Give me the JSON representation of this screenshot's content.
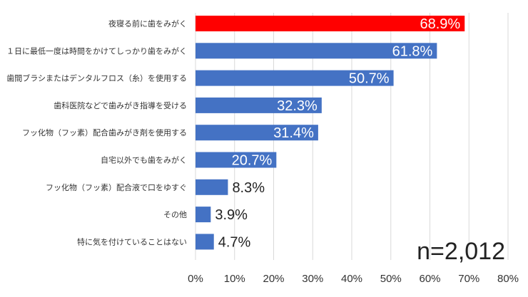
{
  "chart_data": {
    "type": "bar",
    "orientation": "horizontal",
    "categories": [
      "夜寝る前に歯をみがく",
      "１日に最低一度は時間をかけてしっかり歯をみがく",
      "歯間ブラシまたはデンタルフロス（糸）を使用する",
      "歯科医院などで歯みがき指導を受ける",
      "フッ化物（フッ素）配合歯みがき剤を使用する",
      "自宅以外でも歯をみがく",
      "フッ化物（フッ素）配合液で口をゆすぐ",
      "その他",
      "特に気を付けていることはない"
    ],
    "values": [
      68.9,
      61.8,
      50.7,
      32.3,
      31.4,
      20.7,
      8.3,
      3.9,
      4.7
    ],
    "value_labels": [
      "68.9%",
      "61.8%",
      "50.7%",
      "32.3%",
      "31.4%",
      "20.7%",
      "8.3%",
      "3.9%",
      "4.7%"
    ],
    "xlim": [
      0,
      80
    ],
    "x_ticks": [
      0,
      10,
      20,
      30,
      40,
      50,
      60,
      70,
      80
    ],
    "x_tick_labels": [
      "0%",
      "10%",
      "20%",
      "30%",
      "40%",
      "50%",
      "60%",
      "70%",
      "80%"
    ],
    "grid": true,
    "colors": {
      "highlight": "#ff0000",
      "default": "#4472c4",
      "grid": "#d9d9d9"
    },
    "highlight_index": 0,
    "annotation": "n=2,012"
  }
}
